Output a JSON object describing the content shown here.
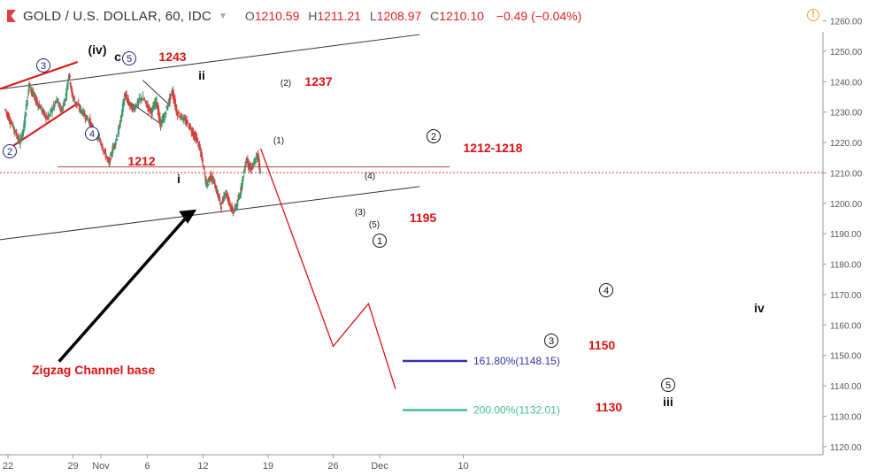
{
  "header": {
    "symbol": "GOLD / U.S. DOLLAR, 60, IDC",
    "open_label": "O",
    "open": "1210.59",
    "high_label": "H",
    "high": "1211.21",
    "low_label": "L",
    "low": "1208.97",
    "close_label": "C",
    "close": "1210.10",
    "change": "−0.49 (−0.04%)",
    "alert_icon": "alert-icon"
  },
  "chart_data": {
    "type": "line",
    "title": "GOLD / U.S. DOLLAR, 60, IDC",
    "xlabel": "",
    "ylabel": "",
    "ylim": [
      1116,
      1265
    ],
    "y_ticks": [
      "1260.00",
      "1250.00",
      "1240.00",
      "1230.00",
      "1220.00",
      "1210.00",
      "1200.00",
      "1190.00",
      "1180.00",
      "1170.00",
      "1160.00",
      "1150.00",
      "1140.00",
      "1130.00",
      "1120.00"
    ],
    "x_ticks": [
      {
        "label": "22",
        "day": 22
      },
      {
        "label": "29",
        "day": 29
      },
      {
        "label": "Nov",
        "day": 32
      },
      {
        "label": "6",
        "day": 37
      },
      {
        "label": "12",
        "day": 43
      },
      {
        "label": "19",
        "day": 50
      },
      {
        "label": "26",
        "day": 57
      },
      {
        "label": "Dec",
        "day": 62
      },
      {
        "label": "10",
        "day": 71
      }
    ],
    "last_price": 1210.1,
    "price_path": [
      [
        21.7,
        1231
      ],
      [
        22.3,
        1227
      ],
      [
        22.9,
        1223
      ],
      [
        23.3,
        1220
      ],
      [
        23.7,
        1224
      ],
      [
        24.0,
        1232
      ],
      [
        24.3,
        1239
      ],
      [
        24.7,
        1236
      ],
      [
        25.2,
        1233
      ],
      [
        25.8,
        1230
      ],
      [
        26.3,
        1228
      ],
      [
        26.8,
        1231
      ],
      [
        27.3,
        1234
      ],
      [
        27.8,
        1230
      ],
      [
        28.3,
        1236
      ],
      [
        28.6,
        1243
      ],
      [
        28.9,
        1236
      ],
      [
        29.3,
        1233
      ],
      [
        29.8,
        1231
      ],
      [
        30.3,
        1229
      ],
      [
        30.8,
        1227
      ],
      [
        31.3,
        1223
      ],
      [
        31.9,
        1221
      ],
      [
        32.4,
        1217
      ],
      [
        32.9,
        1213
      ],
      [
        33.3,
        1218
      ],
      [
        33.8,
        1222
      ],
      [
        34.2,
        1228
      ],
      [
        34.6,
        1236
      ],
      [
        35.0,
        1233
      ],
      [
        35.5,
        1231
      ],
      [
        36.0,
        1233
      ],
      [
        36.5,
        1235
      ],
      [
        37.0,
        1232
      ],
      [
        37.5,
        1230
      ],
      [
        38.0,
        1234
      ],
      [
        38.4,
        1226
      ],
      [
        38.8,
        1228
      ],
      [
        39.3,
        1233
      ],
      [
        39.7,
        1237
      ],
      [
        40.2,
        1230
      ],
      [
        40.8,
        1228
      ],
      [
        41.4,
        1226
      ],
      [
        42.0,
        1223
      ],
      [
        42.6,
        1219
      ],
      [
        43.0,
        1213
      ],
      [
        43.4,
        1206
      ],
      [
        43.8,
        1209
      ],
      [
        44.2,
        1207
      ],
      [
        44.6,
        1203
      ],
      [
        45.0,
        1199
      ],
      [
        45.4,
        1204
      ],
      [
        45.8,
        1201
      ],
      [
        46.2,
        1197
      ],
      [
        46.6,
        1199
      ],
      [
        47.0,
        1203
      ],
      [
        47.3,
        1208
      ],
      [
        47.7,
        1215
      ],
      [
        48.1,
        1211
      ],
      [
        48.5,
        1213
      ],
      [
        48.9,
        1216
      ],
      [
        49.2,
        1210
      ]
    ],
    "annotations": {
      "levels": [
        "1243",
        "1237",
        "1212-1218",
        "1212",
        "1195",
        "1150",
        "1130"
      ],
      "wave_labels": [
        "(iv)",
        "c",
        "ii",
        "i",
        "iii",
        "iv",
        "(2)",
        "(1)",
        "(4)",
        "(3)",
        "(5)"
      ],
      "circled": [
        "3",
        "5",
        "4",
        "2",
        "2",
        "1",
        "3",
        "4",
        "5"
      ],
      "channel_text": "Zigzag Channel base",
      "fib_1618": "161.80%(1148.15)",
      "fib_2000": "200.00%(1132.01)"
    },
    "projection": [
      [
        49.2,
        1218
      ],
      [
        57.0,
        1153
      ],
      [
        60.8,
        1167
      ],
      [
        63.7,
        1139
      ]
    ],
    "fib_levels": [
      {
        "label": "161.80%(1148.15)",
        "value": 1148.15,
        "color": "#3333aa"
      },
      {
        "label": "200.00%(1132.01)",
        "value": 1132.01,
        "color": "#44bb99"
      }
    ],
    "horizontal_line": 1212,
    "channel_upper": [
      [
        21.0,
        1237.5
      ],
      [
        66.3,
        1255.5
      ]
    ],
    "channel_lower": [
      [
        21.0,
        1188.0
      ],
      [
        66.3,
        1205.5
      ]
    ],
    "red_channel": [
      [
        [
          21.0,
          1237.5
        ],
        [
          29.5,
          1246.5
        ]
      ],
      [
        [
          22.6,
          1219.0
        ],
        [
          29.3,
          1232.5
        ]
      ]
    ],
    "ii_channel": [
      [
        [
          34.8,
          1234.0
        ],
        [
          38.5,
          1226.0
        ]
      ],
      [
        [
          36.5,
          1240.5
        ],
        [
          39.5,
          1232.0
        ]
      ]
    ],
    "arrow": {
      "from": [
        27.5,
        1148.0
      ],
      "to": [
        42.3,
        1198.0
      ]
    },
    "colors": {
      "accent": "#dd1111",
      "candle_up": "#3a9a6a",
      "candle_down": "#d04040",
      "price_line": "#e02020",
      "axis_text": "#555555"
    }
  }
}
